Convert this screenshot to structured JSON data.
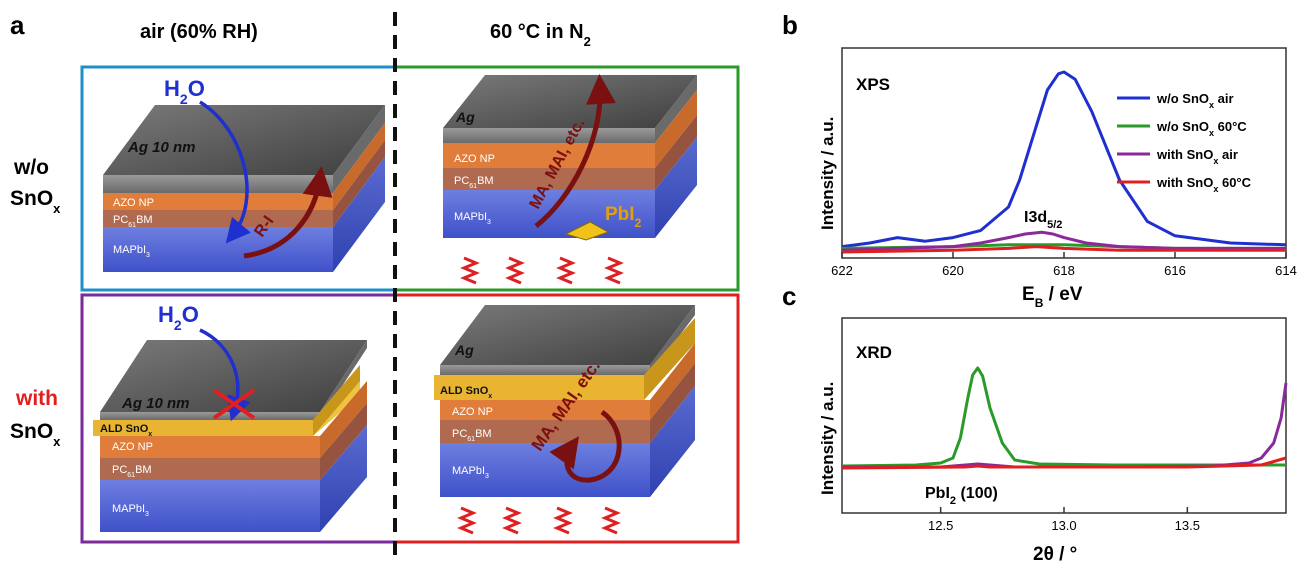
{
  "panel_a": {
    "label": "a",
    "col_air": "air (60% RH)",
    "col_hot": "60 °C in N",
    "col_hot_sub": "2",
    "row_top": "w/o",
    "row_bottom": "with",
    "sno_main": "SnO",
    "sno_sub": "x",
    "h2o_main": "H",
    "h2o_sub": "2",
    "h2o_end": "O",
    "ag_10nm": "Ag 10 nm",
    "ag": "Ag",
    "azo": "AZO NP",
    "pcbm_pre": "PC",
    "pcbm_sub": "61",
    "pcbm_post": "BM",
    "mapbi_pre": "MAPbI",
    "mapbi_sub": "3",
    "ald_pre": "ALD SnO",
    "ald_sub": "x",
    "ri": "R-I",
    "ma_mai": "MA, MAI, etc.",
    "pbi_pre": "PbI",
    "pbi_sub": "2",
    "colors": {
      "blue_frame": "#1f8fc8",
      "green_frame": "#2a9a2a",
      "purple_frame": "#7a2a9a",
      "red_frame": "#e02020",
      "h2o": "#1f2fd0",
      "arrow": "#7a1010",
      "with_text": "#e02020",
      "heat": "#e02020"
    }
  },
  "panel_b": {
    "label": "b",
    "tag": "XPS",
    "ylabel": "Intensity / a.u.",
    "xlabel_main": "E",
    "xlabel_sub": "B",
    "xlabel_end": " / eV",
    "peak_main": "I3d",
    "peak_sub": "5/2",
    "legend": [
      {
        "pre": "w/o SnO",
        "sub": "x",
        "post": " air",
        "color": "#1f2fd0"
      },
      {
        "pre": "w/o SnO",
        "sub": "x",
        "post": " 60°C",
        "color": "#2a9a2a"
      },
      {
        "pre": "with SnO",
        "sub": "x",
        "post": " air",
        "color": "#8a2a9a"
      },
      {
        "pre": "with SnO",
        "sub": "x",
        "post": " 60°C",
        "color": "#e02020"
      }
    ]
  },
  "panel_c": {
    "label": "c",
    "tag": "XRD",
    "ylabel": "Intensity / a.u.",
    "xlabel": "2θ / °",
    "peak_pre": "PbI",
    "peak_sub": "2",
    "peak_post": " (100)"
  },
  "chart_data": [
    {
      "type": "line",
      "xlim": [
        622,
        614
      ],
      "xticks": [
        622,
        620,
        618,
        616,
        614
      ],
      "xtick_labels": [
        "622",
        "620",
        "618",
        "616",
        "614"
      ],
      "series": [
        {
          "name": "w/o SnOx air",
          "color": "#1f2fd0",
          "x": [
            622,
            621.5,
            621,
            620.5,
            620,
            619.5,
            619,
            618.8,
            618.5,
            618.3,
            618.1,
            618,
            617.8,
            617.5,
            617,
            616.5,
            616,
            615,
            614
          ],
          "y": [
            0.03,
            0.05,
            0.08,
            0.06,
            0.08,
            0.12,
            0.25,
            0.4,
            0.7,
            0.9,
            0.99,
            1.0,
            0.96,
            0.78,
            0.4,
            0.17,
            0.09,
            0.05,
            0.04
          ]
        },
        {
          "name": "w/o SnOx 60°C",
          "color": "#2a9a2a",
          "x": [
            622,
            620,
            619,
            618,
            617,
            616,
            614
          ],
          "y": [
            0.02,
            0.03,
            0.04,
            0.04,
            0.03,
            0.02,
            0.02
          ]
        },
        {
          "name": "with SnOx air",
          "color": "#8a2a9a",
          "x": [
            622,
            621,
            620,
            619.5,
            619,
            618.7,
            618.4,
            618.2,
            618,
            617.6,
            617,
            616,
            615,
            614
          ],
          "y": [
            0.01,
            0.02,
            0.03,
            0.05,
            0.08,
            0.1,
            0.11,
            0.1,
            0.08,
            0.05,
            0.03,
            0.02,
            0.02,
            0.02
          ]
        },
        {
          "name": "with SnOx 60°C",
          "color": "#e02020",
          "x": [
            622,
            620,
            619,
            618.5,
            618,
            617,
            616,
            614
          ],
          "y": [
            0.0,
            0.01,
            0.02,
            0.03,
            0.02,
            0.01,
            0.01,
            0.01
          ]
        }
      ]
    },
    {
      "type": "line",
      "xlim": [
        12.1,
        13.9
      ],
      "xticks": [
        12.5,
        13.0,
        13.5
      ],
      "xtick_labels": [
        "12.5",
        "13.0",
        "13.5"
      ],
      "series": [
        {
          "color": "#2a9a2a",
          "x": [
            12.1,
            12.4,
            12.5,
            12.55,
            12.58,
            12.61,
            12.63,
            12.65,
            12.67,
            12.7,
            12.75,
            12.8,
            12.9,
            13.2,
            13.6,
            13.9
          ],
          "y": [
            0.02,
            0.03,
            0.05,
            0.1,
            0.3,
            0.7,
            0.93,
            1.0,
            0.92,
            0.6,
            0.25,
            0.08,
            0.04,
            0.03,
            0.03,
            0.03
          ]
        },
        {
          "color": "#8a2a9a",
          "x": [
            12.1,
            12.5,
            12.6,
            12.65,
            12.7,
            12.8,
            13.2,
            13.6,
            13.75,
            13.8,
            13.85,
            13.88,
            13.9
          ],
          "y": [
            0.01,
            0.01,
            0.03,
            0.04,
            0.03,
            0.01,
            0.01,
            0.02,
            0.05,
            0.1,
            0.25,
            0.5,
            0.85
          ]
        },
        {
          "color": "#e02020",
          "x": [
            12.1,
            12.6,
            12.65,
            12.7,
            13.5,
            13.8,
            13.9
          ],
          "y": [
            0.0,
            0.01,
            0.02,
            0.01,
            0.01,
            0.03,
            0.1
          ]
        }
      ]
    }
  ]
}
